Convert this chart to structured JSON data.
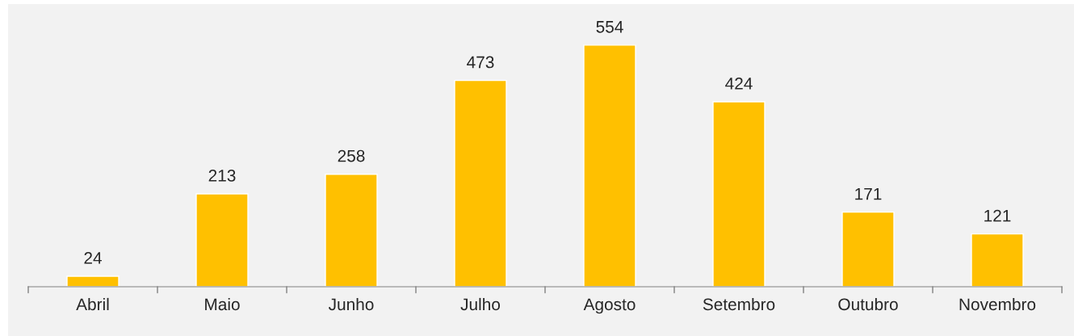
{
  "chart_data": {
    "type": "bar",
    "categories": [
      "Abril",
      "Maio",
      "Junho",
      "Julho",
      "Agosto",
      "Setembro",
      "Outubro",
      "Novembro"
    ],
    "values": [
      24,
      213,
      258,
      473,
      554,
      424,
      171,
      121
    ],
    "color": "#ffc000",
    "data_labels": true,
    "grid": false,
    "legend": false
  }
}
